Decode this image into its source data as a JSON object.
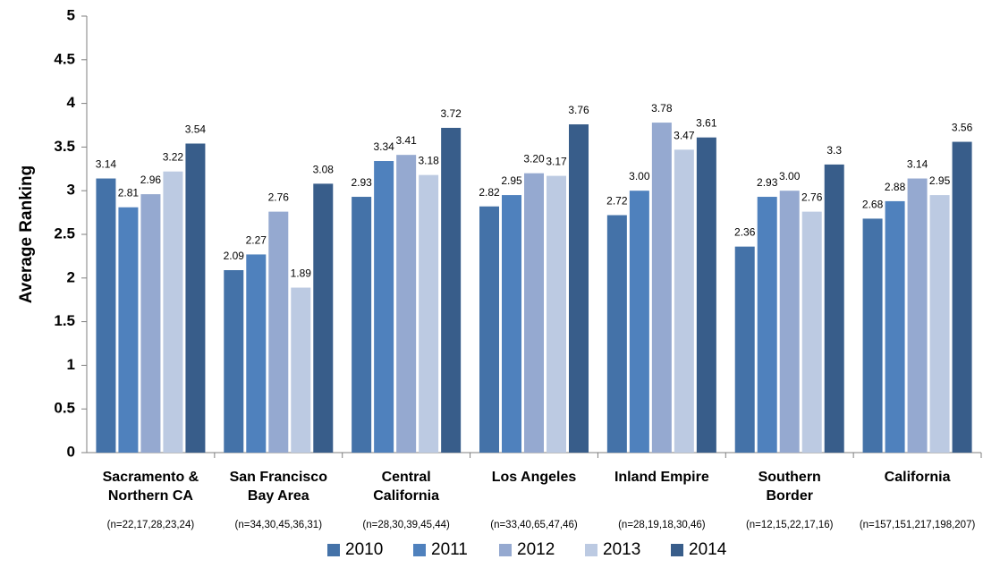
{
  "chart_data": {
    "type": "bar",
    "ylabel": "Average Ranking",
    "ylim": [
      0,
      5
    ],
    "yticks": [
      "0",
      "0.5",
      "1",
      "1.5",
      "2",
      "2.5",
      "3",
      "3.5",
      "4",
      "4.5",
      "5"
    ],
    "grid": false,
    "legend_position": "bottom",
    "categories": [
      {
        "label_lines": [
          "Sacramento &",
          "Northern CA"
        ],
        "n": "(n=22,17,28,23,24)"
      },
      {
        "label_lines": [
          "San Francisco",
          "Bay Area"
        ],
        "n": "(n=34,30,45,36,31)"
      },
      {
        "label_lines": [
          "Central",
          "California"
        ],
        "n": "(n=28,30,39,45,44)"
      },
      {
        "label_lines": [
          "Los Angeles"
        ],
        "n": "(n=33,40,65,47,46)"
      },
      {
        "label_lines": [
          "Inland Empire"
        ],
        "n": "(n=28,19,18,30,46)"
      },
      {
        "label_lines": [
          "Southern",
          "Border"
        ],
        "n": "(n=12,15,22,17,16)"
      },
      {
        "label_lines": [
          "California"
        ],
        "n": "(n=157,151,217,198,207)"
      }
    ],
    "series": [
      {
        "name": "2010",
        "color": "#4472A8",
        "values": [
          3.14,
          2.09,
          2.93,
          2.82,
          2.72,
          2.36,
          2.68
        ],
        "labels": [
          "3.14",
          "2.09",
          "2.93",
          "2.82",
          "2.72",
          "2.36",
          "2.68"
        ]
      },
      {
        "name": "2011",
        "color": "#4F81BD",
        "values": [
          2.81,
          2.27,
          3.34,
          2.95,
          3.0,
          2.93,
          2.88
        ],
        "labels": [
          "2.81",
          "2.27",
          "3.34",
          "2.95",
          "3.00",
          "2.93",
          "2.88"
        ]
      },
      {
        "name": "2012",
        "color": "#95A9D0",
        "values": [
          2.96,
          2.76,
          3.41,
          3.2,
          3.78,
          3.0,
          3.14
        ],
        "labels": [
          "2.96",
          "2.76",
          "3.41",
          "3.20",
          "3.78",
          "3.00",
          "3.14"
        ]
      },
      {
        "name": "2013",
        "color": "#BCCAE2",
        "values": [
          3.22,
          1.89,
          3.18,
          3.17,
          3.47,
          2.76,
          2.95
        ],
        "labels": [
          "3.22",
          "1.89",
          "3.18",
          "3.17",
          "3.47",
          "2.76",
          "2.95"
        ]
      },
      {
        "name": "2014",
        "color": "#385D8A",
        "values": [
          3.54,
          3.08,
          3.72,
          3.76,
          3.61,
          3.3,
          3.56
        ],
        "labels": [
          "3.54",
          "3.08",
          "3.72",
          "3.76",
          "3.61",
          "3.3",
          "3.56"
        ]
      }
    ]
  }
}
